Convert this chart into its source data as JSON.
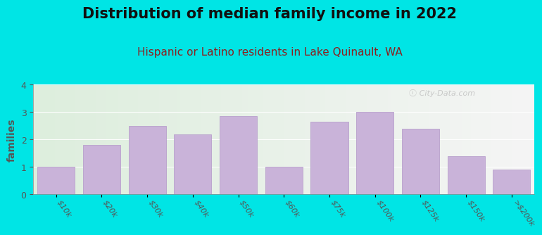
{
  "title": "Distribution of median family income in 2022",
  "subtitle": "Hispanic or Latino residents in Lake Quinault, WA",
  "ylabel": "families",
  "categories": [
    "$10k",
    "$20k",
    "$30k",
    "$40k",
    "$50k",
    "$60k",
    "$75k",
    "$100k",
    "$125k",
    "$150k",
    ">$200k"
  ],
  "values": [
    1.0,
    1.8,
    2.5,
    2.2,
    2.85,
    1.0,
    2.65,
    3.0,
    2.4,
    1.4,
    0.9
  ],
  "bar_color": "#c9b3d9",
  "bar_edge_color": "#b8a0cc",
  "background_color": "#00e5e5",
  "plot_bg_left_color": "#ddeedd",
  "plot_bg_right_color": "#f5f5f5",
  "ylim": [
    0,
    4
  ],
  "yticks": [
    0,
    1,
    2,
    3,
    4
  ],
  "title_fontsize": 15,
  "subtitle_fontsize": 11,
  "subtitle_color": "#8b2020",
  "ylabel_fontsize": 10,
  "xlabel_fontsize": 8,
  "watermark": "ⓘ City-Data.com",
  "bar_width": 0.82
}
